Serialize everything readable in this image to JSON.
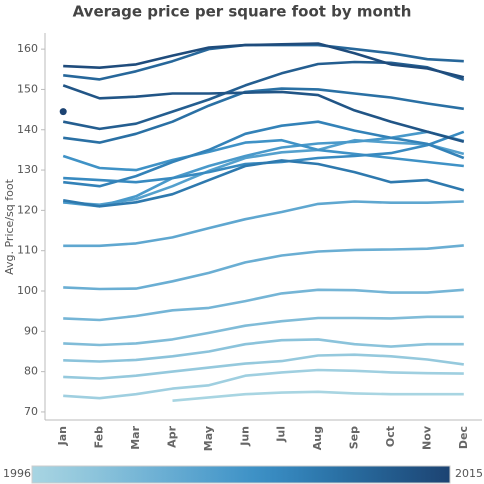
{
  "chart_data": {
    "type": "line",
    "title": "Average price per square foot by month",
    "y_label": "Avg. Price/sq foot",
    "categories": [
      "Jan",
      "Feb",
      "Mar",
      "Apr",
      "May",
      "Jun",
      "Jul",
      "Aug",
      "Sep",
      "Oct",
      "Nov",
      "Dec"
    ],
    "ylim": [
      68,
      164
    ],
    "yticks": [
      70,
      80,
      90,
      100,
      110,
      120,
      130,
      140,
      150,
      160
    ],
    "color_legend": {
      "min_label": "1996",
      "max_label": "2015"
    },
    "series": [
      {
        "color": "#a8d5e2",
        "values": [
          null,
          null,
          null,
          72.8,
          73.6,
          74.4,
          74.8,
          75.0,
          74.6,
          74.4,
          74.4,
          74.4
        ]
      },
      {
        "color": "#9fcfe0",
        "values": [
          74.0,
          73.4,
          74.4,
          75.8,
          76.6,
          79.0,
          79.8,
          80.4,
          80.2,
          79.8,
          79.6,
          79.5
        ]
      },
      {
        "color": "#95c9dd",
        "values": [
          78.7,
          78.3,
          79.0,
          80.0,
          81.0,
          82.0,
          82.6,
          84.0,
          84.2,
          83.8,
          83.0,
          81.8
        ]
      },
      {
        "color": "#8bc3db",
        "values": [
          82.8,
          82.5,
          82.9,
          83.8,
          85.0,
          86.8,
          87.8,
          88.0,
          86.8,
          86.2,
          86.8,
          86.8
        ]
      },
      {
        "color": "#80bcd8",
        "values": [
          87.0,
          86.6,
          87.0,
          88.0,
          89.6,
          91.4,
          92.5,
          93.3,
          93.3,
          93.2,
          93.6,
          93.6
        ]
      },
      {
        "color": "#75b5d6",
        "values": [
          93.2,
          92.8,
          93.8,
          95.2,
          95.8,
          97.5,
          99.4,
          100.3,
          100.2,
          99.6,
          99.6,
          100.3
        ]
      },
      {
        "color": "#6aaed3",
        "values": [
          100.9,
          100.5,
          100.6,
          102.4,
          104.5,
          107.1,
          108.8,
          109.8,
          110.2,
          110.3,
          110.5,
          111.3
        ]
      },
      {
        "color": "#5fa7d0",
        "values": [
          111.2,
          111.2,
          111.8,
          113.3,
          115.6,
          117.8,
          119.6,
          121.6,
          122.2,
          121.9,
          121.9,
          122.2
        ]
      },
      {
        "color": "#54a0cd",
        "values": [
          122.0,
          121.4,
          122.8,
          126.0,
          129.8,
          133.0,
          134.4,
          135.0,
          137.4,
          136.8,
          136.4,
          134.0
        ]
      },
      {
        "color": "#4999ca",
        "values": [
          122.0,
          121.0,
          123.5,
          128.0,
          131.0,
          133.5,
          135.6,
          136.6,
          137.0,
          138.0,
          139.5,
          137.2
        ]
      },
      {
        "color": "#3f92c6",
        "values": [
          133.5,
          130.5,
          130.0,
          132.5,
          134.5,
          136.8,
          137.4,
          135.0,
          134.0,
          133.0,
          132.0,
          131.0
        ]
      },
      {
        "color": "#388ac0",
        "values": [
          128.0,
          127.5,
          127.0,
          128.0,
          129.5,
          131.5,
          132.0,
          133.0,
          133.5,
          134.2,
          136.2,
          139.5
        ]
      },
      {
        "color": "#3382b8",
        "values": [
          127.0,
          126.0,
          128.5,
          132.0,
          135.0,
          139.0,
          141.0,
          142.0,
          139.8,
          138.0,
          136.5,
          133.0
        ]
      },
      {
        "color": "#2e79ae",
        "values": [
          122.5,
          121.0,
          122.0,
          124.0,
          127.5,
          131.0,
          132.4,
          131.5,
          129.5,
          127.0,
          127.5,
          125.0
        ]
      },
      {
        "color": "#2a70a4",
        "values": [
          138.0,
          136.8,
          139.0,
          142.0,
          146.0,
          149.4,
          150.2,
          150.0,
          149.0,
          148.0,
          146.5,
          145.2
        ]
      },
      {
        "color": "#27679a",
        "values": [
          153.5,
          152.5,
          154.5,
          157.0,
          160.0,
          161.0,
          161.0,
          161.0,
          160.0,
          159.0,
          157.5,
          157.0
        ]
      },
      {
        "color": "#245e90",
        "values": [
          142.0,
          140.2,
          141.5,
          144.5,
          147.5,
          151.0,
          154.0,
          156.3,
          156.8,
          156.6,
          155.5,
          152.4
        ]
      },
      {
        "color": "#215586",
        "values": [
          151.0,
          147.8,
          148.2,
          149.0,
          149.0,
          149.2,
          149.4,
          148.6,
          144.8,
          142.0,
          139.5,
          137.0
        ]
      },
      {
        "color": "#1f4c7c",
        "values": [
          155.8,
          155.4,
          156.2,
          158.4,
          160.4,
          161.0,
          161.2,
          161.4,
          159.0,
          156.2,
          155.2,
          153.0
        ]
      },
      {
        "color": "#1c4372",
        "values": [
          144.5,
          null,
          null,
          null,
          null,
          null,
          null,
          null,
          null,
          null,
          null,
          null
        ]
      }
    ]
  }
}
